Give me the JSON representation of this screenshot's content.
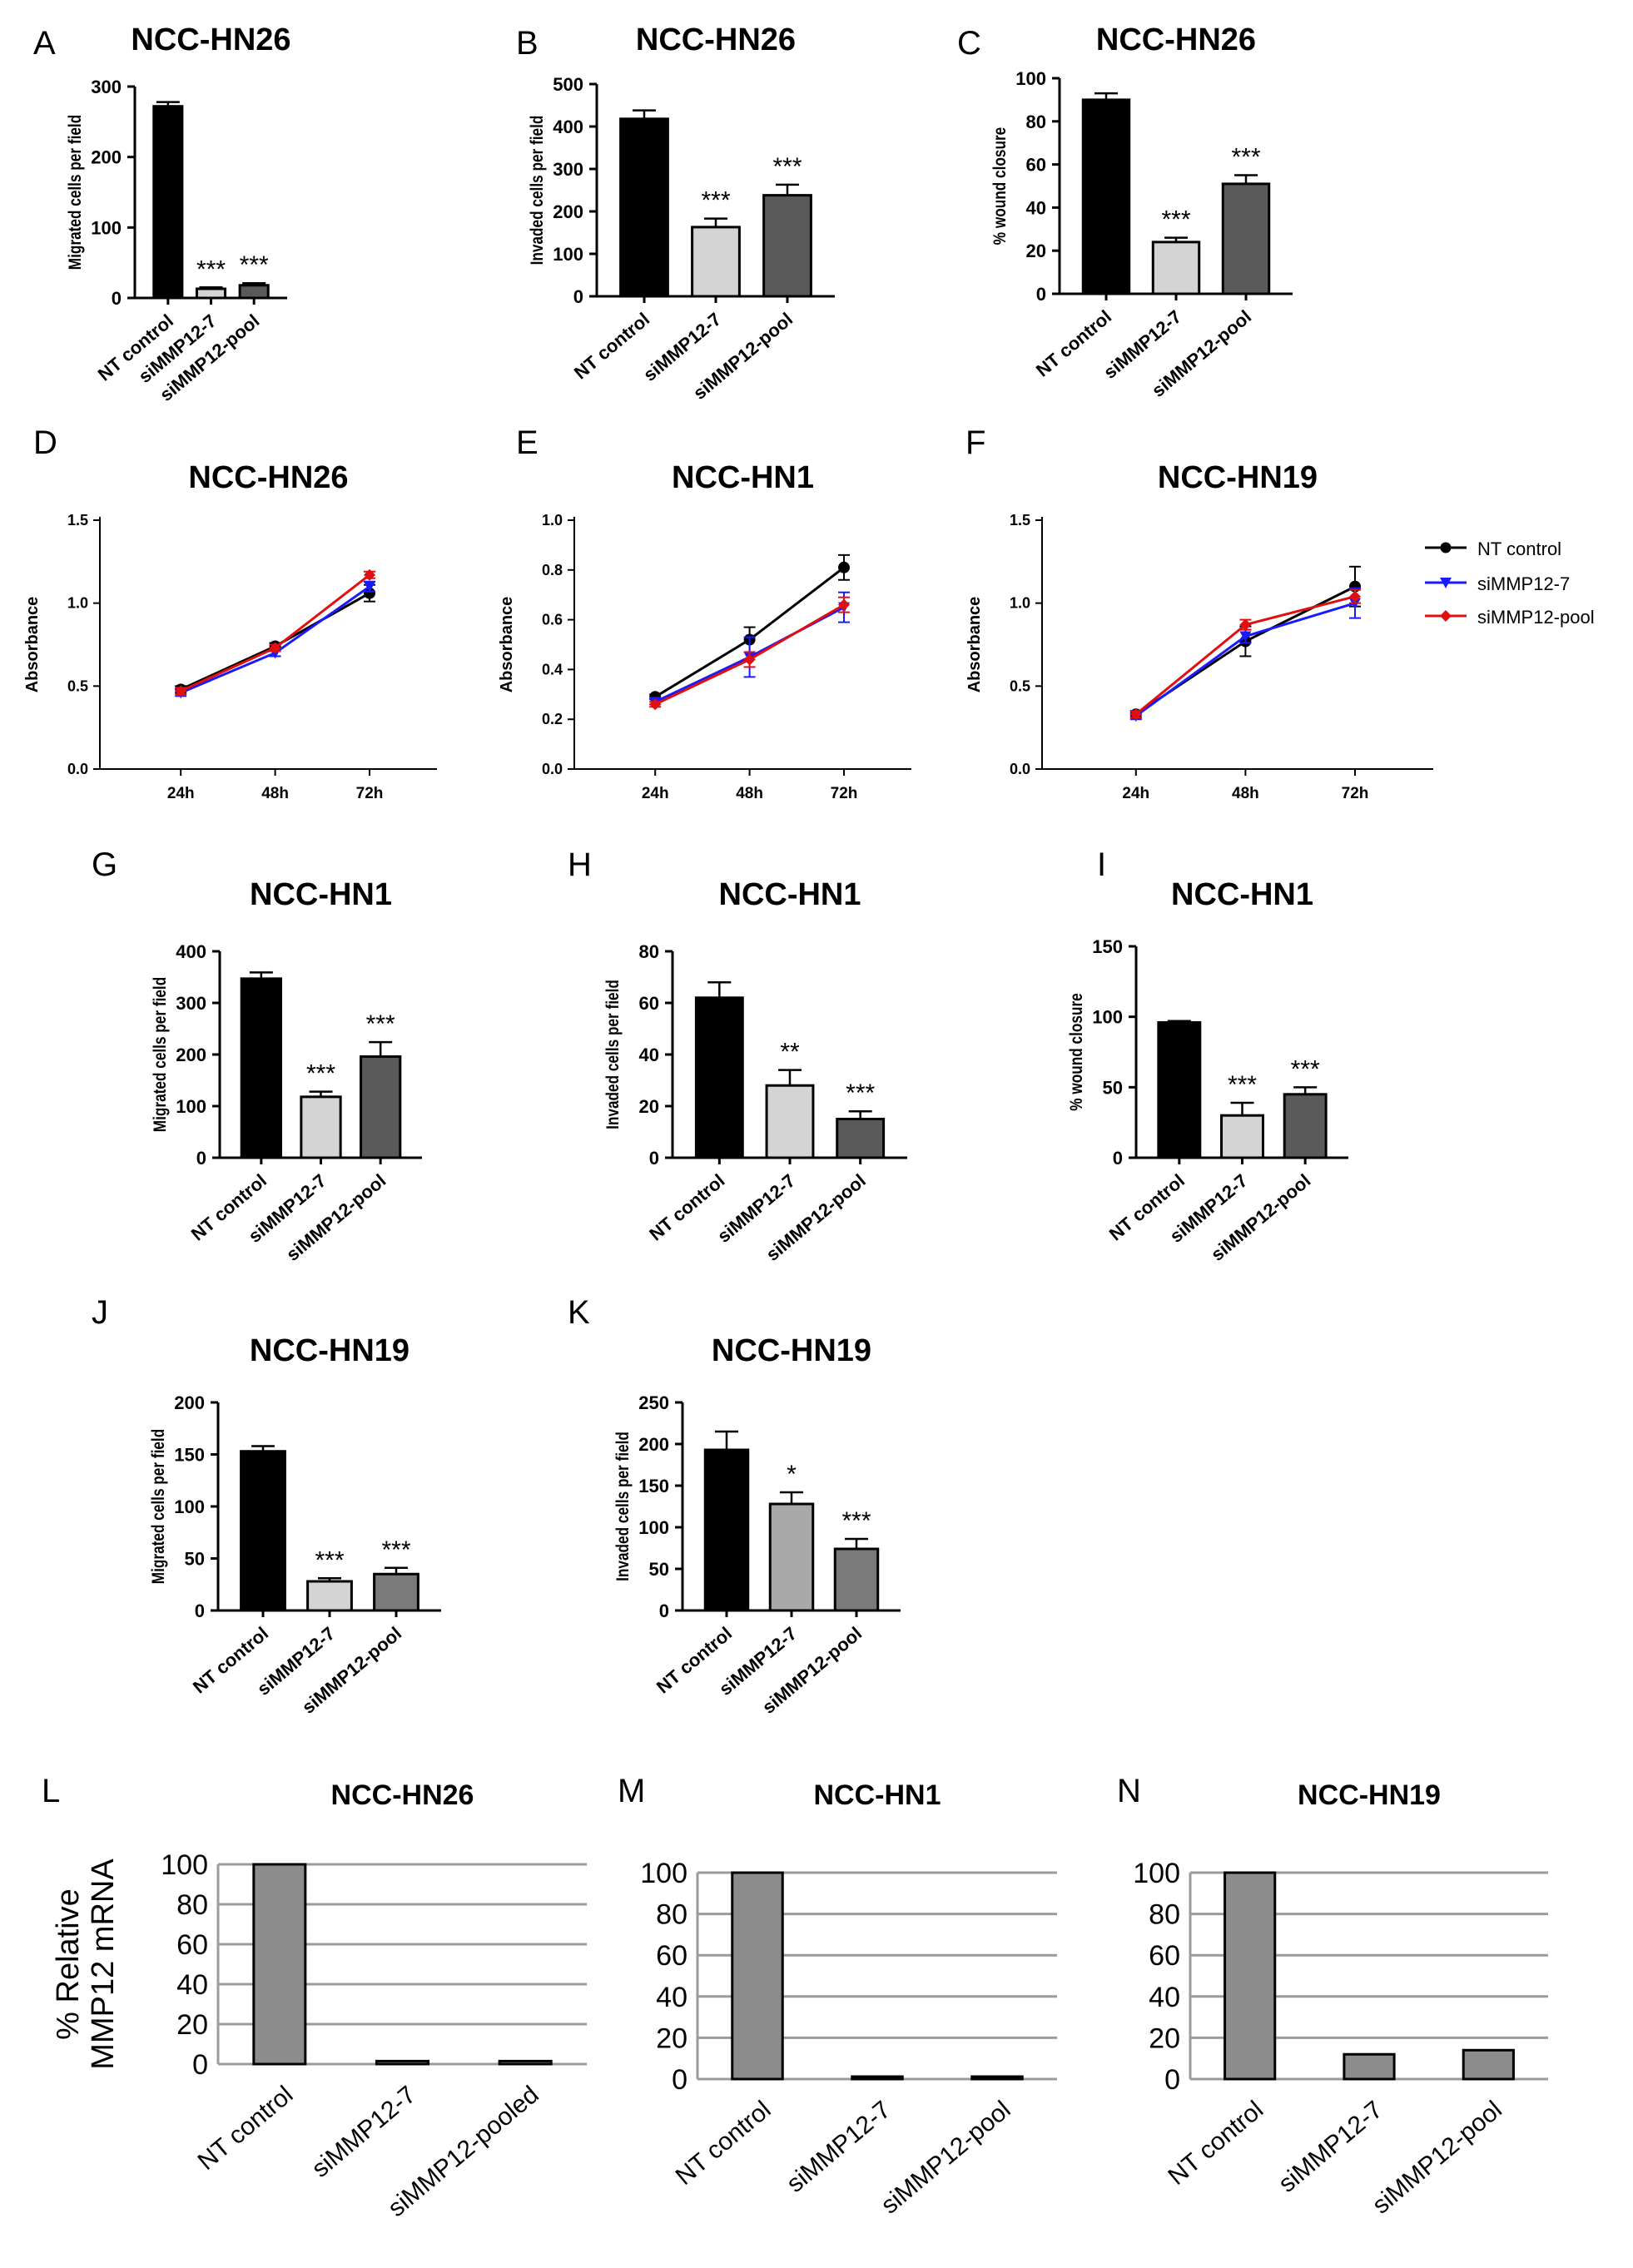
{
  "figure_colors": {
    "black": "#000000",
    "light_gray": "#d4d4d4",
    "dark_gray": "#5a5a5a",
    "mid_gray": "#9a9a9a",
    "panel_gray": "#8c8c8c",
    "grid_gray": "#9b9b9b",
    "blue": "#1a1aff",
    "red": "#e01010"
  },
  "legend": {
    "entries": [
      {
        "label": "NT control",
        "color": "#000000",
        "marker": "circle"
      },
      {
        "label": "siMMP12-7",
        "color": "#1a1aff",
        "marker": "triangle-down"
      },
      {
        "label": "siMMP12-pool",
        "color": "#e01010",
        "marker": "diamond"
      }
    ]
  },
  "chart_data": [
    {
      "id": "A",
      "type": "bar",
      "style": "sig",
      "title": "NCC-HN26",
      "ylabel": "Migrated cells per field",
      "ylim": [
        0,
        300
      ],
      "yticks": [
        0,
        100,
        200,
        300
      ],
      "categories": [
        "NT control",
        "siMMP12-7",
        "siMMP12-pool"
      ],
      "values": [
        272,
        13,
        18
      ],
      "errors": [
        6,
        2,
        3
      ],
      "sig": [
        "",
        "***",
        "***"
      ]
    },
    {
      "id": "B",
      "type": "bar",
      "style": "sig",
      "title": "NCC-HN26",
      "ylabel": "Invaded cells per field",
      "ylim": [
        0,
        500
      ],
      "yticks": [
        0,
        100,
        200,
        300,
        400,
        500
      ],
      "categories": [
        "NT control",
        "siMMP12-7",
        "siMMP12-pool"
      ],
      "values": [
        418,
        163,
        238
      ],
      "errors": [
        20,
        20,
        25
      ],
      "sig": [
        "",
        "***",
        "***"
      ]
    },
    {
      "id": "C",
      "type": "bar",
      "style": "sig",
      "title": "NCC-HN26",
      "ylabel": "% wound closure",
      "ylim": [
        0,
        100
      ],
      "yticks": [
        0,
        20,
        40,
        60,
        80,
        100
      ],
      "categories": [
        "NT control",
        "siMMP12-7",
        "siMMP12-pool"
      ],
      "values": [
        90,
        24,
        51
      ],
      "errors": [
        3,
        2,
        4
      ],
      "sig": [
        "",
        "***",
        "***"
      ]
    },
    {
      "id": "D",
      "type": "line",
      "title": "NCC-HN26",
      "ylabel": "Absorbance",
      "ylim": [
        0,
        1.5
      ],
      "yticks": [
        "0.0",
        "0.5",
        "1.0",
        "1.5"
      ],
      "categories": [
        "24h",
        "48h",
        "72h"
      ],
      "series": [
        {
          "name": "NT control",
          "color": "#000000",
          "marker": "circle",
          "values": [
            0.48,
            0.74,
            1.06
          ],
          "errors": [
            0.02,
            0.02,
            0.05
          ]
        },
        {
          "name": "siMMP12-7",
          "color": "#1a1aff",
          "marker": "triangle-down",
          "values": [
            0.46,
            0.7,
            1.1
          ],
          "errors": [
            0.02,
            0.02,
            0.03
          ]
        },
        {
          "name": "siMMP12-pool",
          "color": "#e01010",
          "marker": "diamond",
          "values": [
            0.47,
            0.73,
            1.17
          ],
          "errors": [
            0.02,
            0.02,
            0.02
          ]
        }
      ]
    },
    {
      "id": "E",
      "type": "line",
      "title": "NCC-HN1",
      "ylabel": "Absorbance",
      "ylim": [
        0,
        1.0
      ],
      "yticks": [
        "0.0",
        "0.2",
        "0.4",
        "0.6",
        "0.8",
        "1.0"
      ],
      "categories": [
        "24h",
        "48h",
        "72h"
      ],
      "series": [
        {
          "name": "NT control",
          "color": "#000000",
          "marker": "circle",
          "values": [
            0.29,
            0.52,
            0.81
          ],
          "errors": [
            0.01,
            0.05,
            0.05
          ]
        },
        {
          "name": "siMMP12-7",
          "color": "#1a1aff",
          "marker": "triangle-down",
          "values": [
            0.27,
            0.45,
            0.65
          ],
          "errors": [
            0.01,
            0.08,
            0.06
          ]
        },
        {
          "name": "siMMP12-pool",
          "color": "#e01010",
          "marker": "diamond",
          "values": [
            0.26,
            0.44,
            0.66
          ],
          "errors": [
            0.01,
            0.03,
            0.03
          ]
        }
      ]
    },
    {
      "id": "F",
      "type": "line",
      "title": "NCC-HN19",
      "ylabel": "Absorbance",
      "ylim": [
        0,
        1.5
      ],
      "yticks": [
        "0.0",
        "0.5",
        "1.0",
        "1.5"
      ],
      "categories": [
        "24h",
        "48h",
        "72h"
      ],
      "series": [
        {
          "name": "NT control",
          "color": "#000000",
          "marker": "circle",
          "values": [
            0.33,
            0.77,
            1.1
          ],
          "errors": [
            0.02,
            0.09,
            0.12
          ]
        },
        {
          "name": "siMMP12-7",
          "color": "#1a1aff",
          "marker": "triangle-down",
          "values": [
            0.32,
            0.8,
            1.0
          ],
          "errors": [
            0.02,
            0.04,
            0.09
          ]
        },
        {
          "name": "siMMP12-pool",
          "color": "#e01010",
          "marker": "diamond",
          "values": [
            0.33,
            0.87,
            1.04
          ],
          "errors": [
            0.02,
            0.03,
            0.04
          ]
        }
      ]
    },
    {
      "id": "G",
      "type": "bar",
      "style": "sig",
      "title": "NCC-HN1",
      "ylabel": "Migrated cells per field",
      "ylim": [
        0,
        400
      ],
      "yticks": [
        0,
        100,
        200,
        300,
        400
      ],
      "categories": [
        "NT control",
        "siMMP12-7",
        "siMMP12-pool"
      ],
      "values": [
        347,
        118,
        196
      ],
      "errors": [
        12,
        10,
        28
      ],
      "sig": [
        "",
        "***",
        "***"
      ]
    },
    {
      "id": "H",
      "type": "bar",
      "style": "sig",
      "title": "NCC-HN1",
      "ylabel": "Invaded cells per field",
      "ylim": [
        0,
        80
      ],
      "yticks": [
        0,
        20,
        40,
        60,
        80
      ],
      "categories": [
        "NT control",
        "siMMP12-7",
        "siMMP12-pool"
      ],
      "values": [
        62,
        28,
        15
      ],
      "errors": [
        6,
        6,
        3
      ],
      "sig": [
        "",
        "**",
        "***"
      ]
    },
    {
      "id": "I",
      "type": "bar",
      "style": "sig",
      "title": "NCC-HN1",
      "ylabel": "% wound closure",
      "ylim": [
        0,
        150
      ],
      "yticks": [
        0,
        50,
        100,
        150
      ],
      "categories": [
        "NT control",
        "siMMP12-7",
        "siMMP12-pool"
      ],
      "values": [
        96,
        30,
        45
      ],
      "errors": [
        1,
        9,
        5
      ],
      "sig": [
        "",
        "***",
        "***"
      ]
    },
    {
      "id": "J",
      "type": "bar",
      "style": "sig",
      "title": "NCC-HN19",
      "ylabel": "Migrated cells per field",
      "ylim": [
        0,
        200
      ],
      "yticks": [
        0,
        50,
        100,
        150,
        200
      ],
      "categories": [
        "NT control",
        "siMMP12-7",
        "siMMP12-pool"
      ],
      "values": [
        153,
        28,
        35
      ],
      "errors": [
        5,
        3,
        6
      ],
      "sig": [
        "",
        "***",
        "***"
      ]
    },
    {
      "id": "K",
      "type": "bar",
      "style": "sig",
      "title": "NCC-HN19",
      "ylabel": "Invaded cells per field",
      "ylim": [
        0,
        250
      ],
      "yticks": [
        0,
        50,
        100,
        150,
        200,
        250
      ],
      "categories": [
        "NT control",
        "siMMP12-7",
        "siMMP12-pool"
      ],
      "values": [
        193,
        128,
        74
      ],
      "errors": [
        22,
        14,
        12
      ],
      "sig": [
        "",
        "*",
        "***"
      ]
    },
    {
      "id": "L",
      "type": "bar",
      "style": "grid",
      "title": "NCC-HN26",
      "ylabel_lines": [
        "% Relative",
        "MMP12 mRNA"
      ],
      "ylim": [
        0,
        100
      ],
      "yticks": [
        0,
        20,
        40,
        60,
        80,
        100
      ],
      "categories": [
        "NT control",
        "siMMP12-7",
        "siMMP12-pooled"
      ],
      "values": [
        100,
        1.5,
        1.5
      ]
    },
    {
      "id": "M",
      "type": "bar",
      "style": "grid",
      "title": "NCC-HN1",
      "ylim": [
        0,
        100
      ],
      "yticks": [
        0,
        20,
        40,
        60,
        80,
        100
      ],
      "categories": [
        "NT control",
        "siMMP12-7",
        "siMMP12-pool"
      ],
      "values": [
        100,
        1.2,
        1.2
      ]
    },
    {
      "id": "N",
      "type": "bar",
      "style": "grid",
      "title": "NCC-HN19",
      "ylim": [
        0,
        100
      ],
      "yticks": [
        0,
        20,
        40,
        60,
        80,
        100
      ],
      "categories": [
        "NT control",
        "siMMP12-7",
        "siMMP12-pool"
      ],
      "values": [
        100,
        12,
        14
      ]
    }
  ]
}
